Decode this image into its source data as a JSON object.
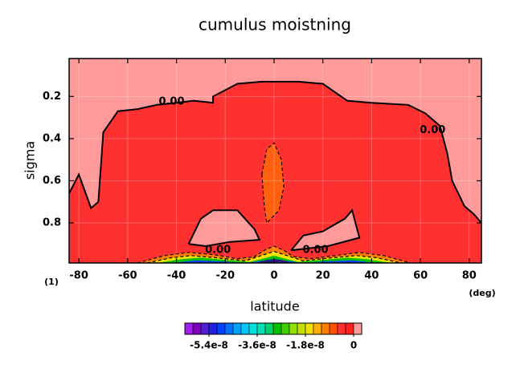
{
  "chart_data": {
    "type": "contour",
    "title": "cumulus moistning",
    "x_label": "latitude",
    "y_label": "sigma",
    "x_unit": "(deg)",
    "corner_label": "(1)",
    "xlim": [
      -84,
      85
    ],
    "ylim": [
      0.02,
      0.99
    ],
    "y_inverted": true,
    "xticks": [
      -80,
      -60,
      -40,
      -20,
      0,
      20,
      40,
      60,
      80
    ],
    "yticks": [
      0.2,
      0.4,
      0.6,
      0.8
    ],
    "grid": true,
    "background_color": "#ff9a9a",
    "regions": [
      {
        "color": "#ff3030",
        "lat": [
          -84,
          -84,
          -80,
          -75,
          -72,
          -70,
          -64,
          -56,
          -48,
          -40,
          -33,
          -25,
          -25,
          -15,
          -5,
          10,
          20,
          30,
          40,
          55,
          62,
          68,
          71,
          73,
          78,
          82,
          85,
          85
        ],
        "sigma": [
          0.99,
          0.66,
          0.57,
          0.73,
          0.7,
          0.37,
          0.27,
          0.26,
          0.24,
          0.23,
          0.22,
          0.23,
          0.2,
          0.14,
          0.13,
          0.13,
          0.14,
          0.22,
          0.23,
          0.24,
          0.28,
          0.34,
          0.47,
          0.6,
          0.72,
          0.76,
          0.8,
          0.99
        ]
      },
      {
        "color": "#ff9a9a",
        "lat": [
          -35,
          -30,
          -25,
          -15,
          -8,
          -6,
          -18,
          -28
        ],
        "sigma": [
          0.9,
          0.78,
          0.74,
          0.74,
          0.83,
          0.88,
          0.89,
          0.91
        ]
      },
      {
        "color": "#ff9a9a",
        "lat": [
          7,
          12,
          20,
          29,
          32,
          35,
          22
        ],
        "sigma": [
          0.93,
          0.86,
          0.84,
          0.78,
          0.74,
          0.87,
          0.91
        ]
      },
      {
        "color": "#ff6010",
        "lat": [
          -5,
          -3,
          0,
          3,
          4,
          2,
          -3,
          -4
        ],
        "sigma": [
          0.57,
          0.45,
          0.42,
          0.5,
          0.63,
          0.74,
          0.8,
          0.72
        ]
      },
      {
        "color": "#ff8000",
        "lat": [
          -56,
          -45,
          -35,
          -25,
          -15,
          -8,
          -4,
          0,
          4,
          8,
          15,
          25,
          35,
          45,
          56
        ],
        "sigma": [
          0.99,
          0.955,
          0.94,
          0.95,
          0.97,
          0.96,
          0.93,
          0.91,
          0.93,
          0.96,
          0.97,
          0.955,
          0.94,
          0.955,
          0.99
        ]
      },
      {
        "color": "#f0e000",
        "lat": [
          -52,
          -42,
          -34,
          -24,
          -12,
          -4,
          0,
          4,
          12,
          24,
          34,
          42,
          52
        ],
        "sigma": [
          0.99,
          0.965,
          0.955,
          0.965,
          0.98,
          0.95,
          0.935,
          0.95,
          0.98,
          0.965,
          0.955,
          0.965,
          0.99
        ]
      },
      {
        "color": "#00c000",
        "lat": [
          -48,
          -38,
          -30,
          -20,
          -10,
          -3,
          0,
          3,
          10,
          20,
          30,
          38,
          48
        ],
        "sigma": [
          0.99,
          0.972,
          0.965,
          0.975,
          0.985,
          0.965,
          0.955,
          0.965,
          0.985,
          0.975,
          0.965,
          0.972,
          0.99
        ]
      },
      {
        "color": "#0040ff",
        "lat": [
          -42,
          -32,
          -22,
          -12,
          -2,
          0,
          2,
          12,
          22,
          32,
          42
        ],
        "sigma": [
          0.99,
          0.978,
          0.982,
          0.99,
          0.975,
          0.97,
          0.975,
          0.99,
          0.982,
          0.978,
          0.99
        ]
      },
      {
        "color": "#202080",
        "lat": [
          -8,
          -3,
          0,
          3,
          8
        ],
        "sigma": [
          0.99,
          0.975,
          0.972,
          0.975,
          0.99
        ]
      }
    ],
    "contours": [
      {
        "style": "solid",
        "lat": [
          -84,
          -80,
          -75,
          -72,
          -70,
          -64,
          -56,
          -48,
          -40,
          -33,
          -25,
          -25,
          -15,
          -5,
          10,
          20,
          30,
          40,
          55,
          62,
          68,
          71,
          73,
          78,
          82,
          85
        ],
        "sigma": [
          0.66,
          0.57,
          0.73,
          0.7,
          0.37,
          0.27,
          0.26,
          0.24,
          0.23,
          0.22,
          0.23,
          0.2,
          0.14,
          0.13,
          0.13,
          0.14,
          0.22,
          0.23,
          0.24,
          0.28,
          0.34,
          0.47,
          0.6,
          0.72,
          0.76,
          0.8
        ]
      },
      {
        "style": "solid",
        "lat": [
          -35,
          -30,
          -25,
          -15,
          -8,
          -6,
          -18,
          -28,
          -35
        ],
        "sigma": [
          0.9,
          0.78,
          0.74,
          0.74,
          0.83,
          0.88,
          0.89,
          0.91,
          0.9
        ]
      },
      {
        "style": "solid",
        "lat": [
          7,
          12,
          20,
          29,
          32,
          35,
          22,
          7
        ],
        "sigma": [
          0.93,
          0.86,
          0.84,
          0.78,
          0.74,
          0.87,
          0.91,
          0.93
        ]
      },
      {
        "style": "dashed",
        "lat": [
          -5,
          -3,
          0,
          3,
          4,
          2,
          -3,
          -4,
          -5
        ],
        "sigma": [
          0.57,
          0.45,
          0.42,
          0.5,
          0.63,
          0.74,
          0.8,
          0.72,
          0.57
        ]
      },
      {
        "style": "dashed",
        "lat": [
          -56,
          -45,
          -35,
          -25,
          -15,
          -8,
          -4,
          0,
          4,
          8,
          15,
          25,
          35,
          45,
          56
        ],
        "sigma": [
          0.99,
          0.955,
          0.94,
          0.95,
          0.97,
          0.96,
          0.93,
          0.91,
          0.93,
          0.96,
          0.97,
          0.955,
          0.94,
          0.955,
          0.99
        ]
      },
      {
        "style": "dashed",
        "lat": [
          -52,
          -42,
          -34,
          -24,
          -12,
          -4,
          0,
          4,
          12,
          24,
          34,
          42,
          52
        ],
        "sigma": [
          0.99,
          0.965,
          0.955,
          0.965,
          0.98,
          0.95,
          0.935,
          0.95,
          0.98,
          0.965,
          0.955,
          0.965,
          0.99
        ]
      }
    ],
    "contour_labels": [
      {
        "text": "0.00",
        "lat": -42,
        "sigma": 0.225
      },
      {
        "text": "0.00",
        "lat": 65,
        "sigma": 0.36
      },
      {
        "text": "0.00",
        "lat": -23,
        "sigma": 0.93
      },
      {
        "text": "0.00",
        "lat": 17,
        "sigma": 0.93
      }
    ],
    "colorbar": {
      "clim": [
        -6.3e-08,
        3e-09
      ],
      "ticks": [
        -5.4e-08,
        -3.6e-08,
        -1.8e-08,
        0
      ],
      "colors": [
        "#a020f0",
        "#8000c0",
        "#5020d0",
        "#2020e0",
        "#0040ff",
        "#0070ff",
        "#00a0ff",
        "#00c8ff",
        "#00e0e0",
        "#00e0b0",
        "#00d070",
        "#00c000",
        "#40d000",
        "#90e000",
        "#c0e000",
        "#f0e000",
        "#ffb000",
        "#ff8000",
        "#ff5000",
        "#ff3030",
        "#ff2020",
        "#ff9a9a"
      ]
    }
  }
}
